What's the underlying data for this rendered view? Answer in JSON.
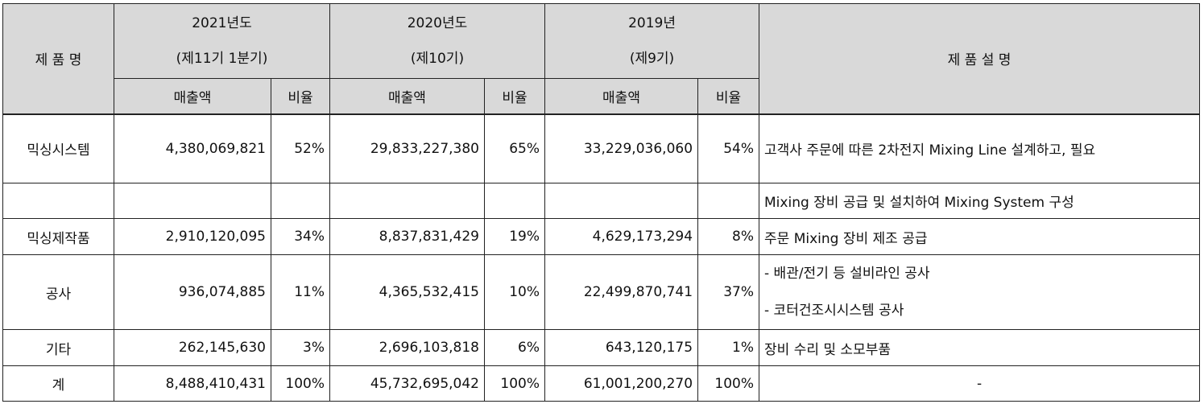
{
  "table": {
    "header": {
      "product": "제 품 명",
      "description": "제 품 설 명",
      "years": [
        {
          "line1": "2021년도",
          "line2": "(제11기 1분기)"
        },
        {
          "line1": "2020년도",
          "line2": "(제10기)"
        },
        {
          "line1": "2019년",
          "line2": "(제9기)"
        }
      ],
      "sales": "매출액",
      "ratio": "비율"
    },
    "rows": [
      {
        "name": "믹싱시스템",
        "v2021": "4,380,069,821",
        "r2021": "52%",
        "v2020": "29,833,227,380",
        "r2020": "65%",
        "v2019": "33,229,036,060",
        "r2019": "54%",
        "desc": "고객사 주문에 따른 2차전지 Mixing Line 설계하고, 필요"
      },
      {
        "name": "",
        "v2021": "",
        "r2021": "",
        "v2020": "",
        "r2020": "",
        "v2019": "",
        "r2019": "",
        "desc": "Mixing 장비 공급 및 설치하여 Mixing System 구성"
      },
      {
        "name": "믹싱제작품",
        "v2021": "2,910,120,095",
        "r2021": "34%",
        "v2020": "8,837,831,429",
        "r2020": "19%",
        "v2019": "4,629,173,294",
        "r2019": "8%",
        "desc": "주문 Mixing 장비 제조 공급"
      },
      {
        "name": "공사",
        "v2021": "936,074,885",
        "r2021": "11%",
        "v2020": "4,365,532,415",
        "r2020": "10%",
        "v2019": "22,499,870,741",
        "r2019": "37%",
        "desc1": "- 배관/전기 등 설비라인 공사",
        "desc2": "- 코터건조시시스템 공사"
      },
      {
        "name": "기타",
        "v2021": "262,145,630",
        "r2021": "3%",
        "v2020": "2,696,103,818",
        "r2020": "6%",
        "v2019": "643,120,175",
        "r2019": "1%",
        "desc": "장비 수리 및 소모부품"
      },
      {
        "name": "계",
        "v2021": "8,488,410,431",
        "r2021": "100%",
        "v2020": "45,732,695,042",
        "r2020": "100%",
        "v2019": "61,001,200,270",
        "r2019": "100%",
        "desc": "-"
      }
    ]
  }
}
